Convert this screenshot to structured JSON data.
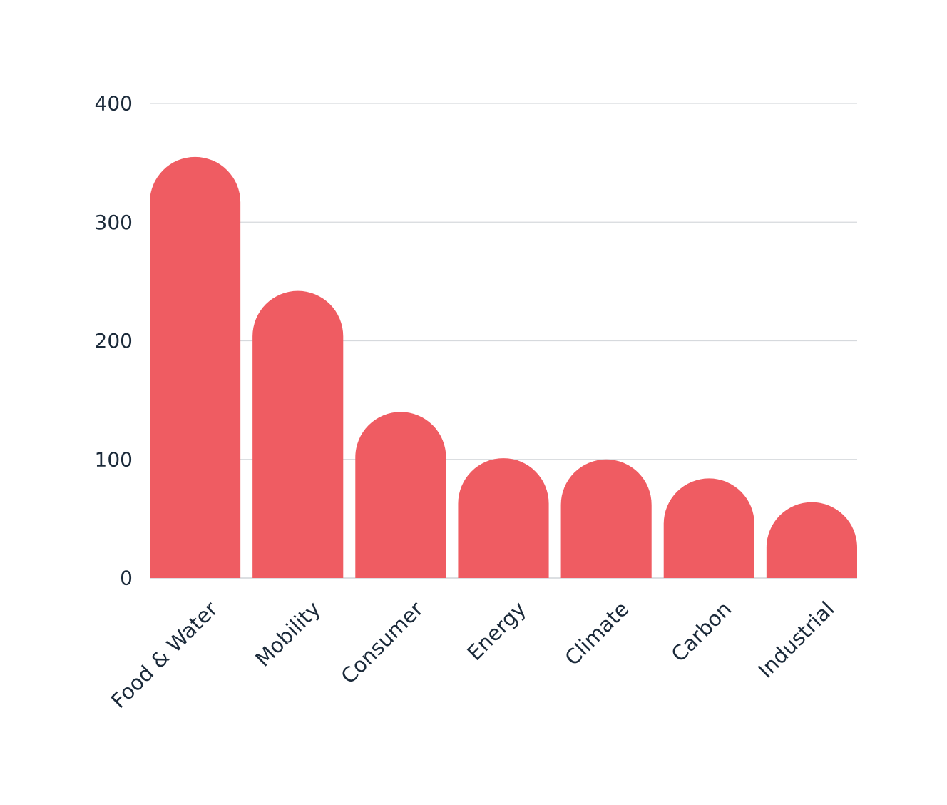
{
  "chart_data": {
    "type": "bar",
    "categories": [
      "Food & Water",
      "Mobility",
      "Consumer",
      "Energy",
      "Climate",
      "Carbon",
      "Industrial"
    ],
    "values": [
      355,
      242,
      140,
      101,
      100,
      84,
      64
    ],
    "ylim": [
      0,
      400
    ],
    "yticks": [
      0,
      100,
      200,
      300,
      400
    ],
    "ytick_labels": [
      "0",
      "100",
      "200",
      "300",
      "400"
    ],
    "title": "",
    "xlabel": "",
    "ylabel": "",
    "grid": true,
    "bar_color": "#ef5c62"
  }
}
